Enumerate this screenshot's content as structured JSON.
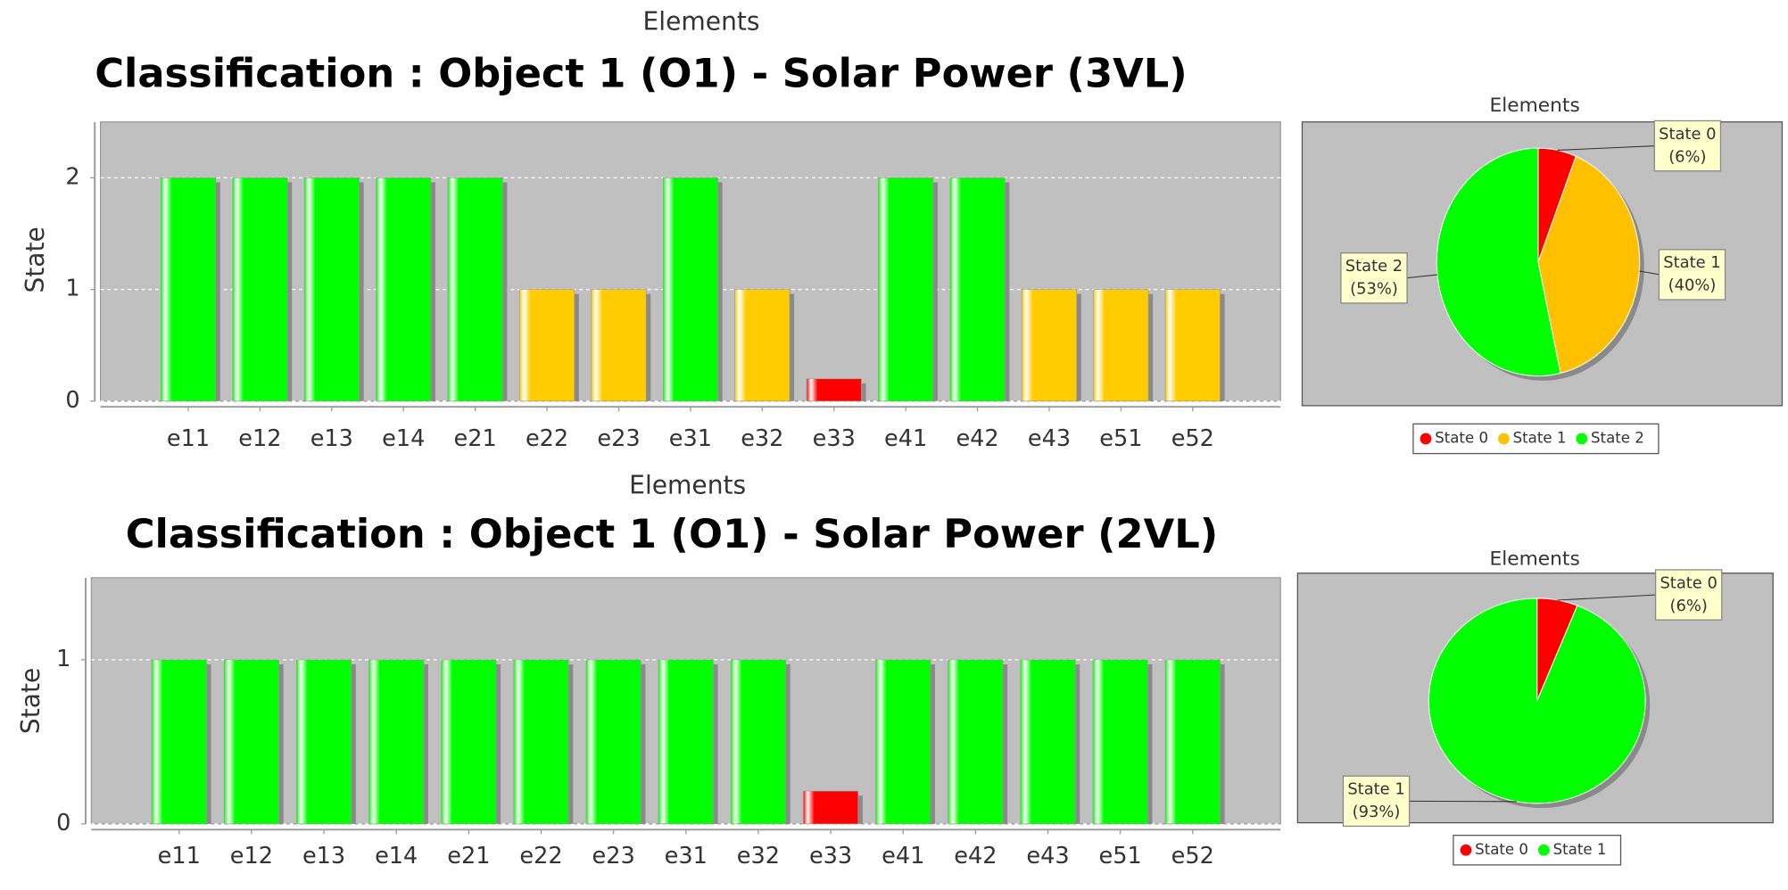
{
  "chart_data": [
    {
      "type": "bar",
      "title": "Classification : Object 1 (O1) - Solar Power (3VL)",
      "x_label": "Elements",
      "y_label": "State",
      "categories": [
        "e11",
        "e12",
        "e13",
        "e14",
        "e21",
        "e22",
        "e23",
        "e31",
        "e32",
        "e33",
        "e41",
        "e42",
        "e43",
        "e51",
        "e52"
      ],
      "values": [
        2,
        2,
        2,
        2,
        2,
        1,
        1,
        2,
        1,
        0.2,
        2,
        2,
        1,
        1,
        1
      ],
      "colors": [
        "#00ff00",
        "#00ff00",
        "#00ff00",
        "#00ff00",
        "#00ff00",
        "#ffcc00",
        "#ffcc00",
        "#00ff00",
        "#ffcc00",
        "#ff0000",
        "#00ff00",
        "#00ff00",
        "#ffcc00",
        "#ffcc00",
        "#ffcc00"
      ],
      "ylim": [
        0,
        2.5
      ],
      "yticks": [
        0,
        1,
        2
      ],
      "grid": true
    },
    {
      "type": "pie",
      "title": "Elements",
      "labels": [
        "State 0",
        "State 1",
        "State 2"
      ],
      "values": [
        6,
        40,
        53
      ],
      "value_labels": [
        "(6%)",
        "(40%)",
        "(53%)"
      ],
      "colors": [
        "#ff0000",
        "#ffc000",
        "#00ff00"
      ],
      "legend": "bottom"
    },
    {
      "type": "bar",
      "title": "Classification : Object 1 (O1) - Solar Power (2VL)",
      "x_label": "Elements",
      "y_label": "State",
      "categories": [
        "e11",
        "e12",
        "e13",
        "e14",
        "e21",
        "e22",
        "e23",
        "e31",
        "e32",
        "e33",
        "e41",
        "e42",
        "e43",
        "e51",
        "e52"
      ],
      "values": [
        1,
        1,
        1,
        1,
        1,
        1,
        1,
        1,
        1,
        0.2,
        1,
        1,
        1,
        1,
        1
      ],
      "colors": [
        "#00ff00",
        "#00ff00",
        "#00ff00",
        "#00ff00",
        "#00ff00",
        "#00ff00",
        "#00ff00",
        "#00ff00",
        "#00ff00",
        "#ff0000",
        "#00ff00",
        "#00ff00",
        "#00ff00",
        "#00ff00",
        "#00ff00"
      ],
      "ylim": [
        0,
        1.5
      ],
      "yticks": [
        0,
        1
      ],
      "grid": true
    },
    {
      "type": "pie",
      "title": "Elements",
      "labels": [
        "State 0",
        "State 1"
      ],
      "values": [
        6,
        93
      ],
      "value_labels": [
        "(6%)",
        "(93%)"
      ],
      "colors": [
        "#ff0000",
        "#00ff00"
      ],
      "legend": "bottom"
    }
  ]
}
